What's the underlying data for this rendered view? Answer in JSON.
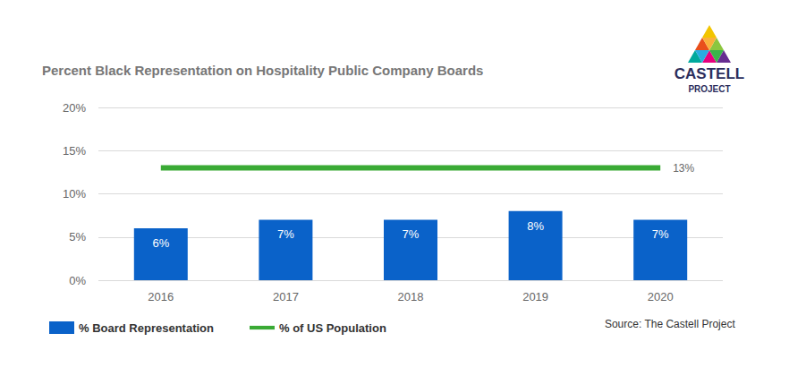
{
  "chart_data": {
    "type": "bar",
    "title": "Percent Black Representation on Hospitality Public Company Boards",
    "categories": [
      "2016",
      "2017",
      "2018",
      "2019",
      "2020"
    ],
    "series": [
      {
        "name": "% Board Representation",
        "type": "bar",
        "color": "#0a62c9",
        "values": [
          6,
          7,
          7,
          8,
          7
        ],
        "value_labels": [
          "6%",
          "7%",
          "7%",
          "8%",
          "7%"
        ]
      },
      {
        "name": "% of US Population",
        "type": "line",
        "color": "#3aaa35",
        "line_style": "solid",
        "values": [
          13,
          13,
          13,
          13,
          13
        ],
        "value_labels": [
          null,
          null,
          null,
          null,
          "13%"
        ]
      }
    ],
    "ylim": [
      0,
      20
    ],
    "yticks": [
      {
        "value": 0,
        "label": "0%"
      },
      {
        "value": 5,
        "label": "5%"
      },
      {
        "value": 10,
        "label": "10%"
      },
      {
        "value": 15,
        "label": "15%"
      },
      {
        "value": 20,
        "label": "20%"
      }
    ],
    "grid": true,
    "data_labels": true,
    "legend": "bottom left",
    "source": "Source: The Castell Project",
    "logo": [
      "CASTELL",
      "PROJECT"
    ]
  }
}
